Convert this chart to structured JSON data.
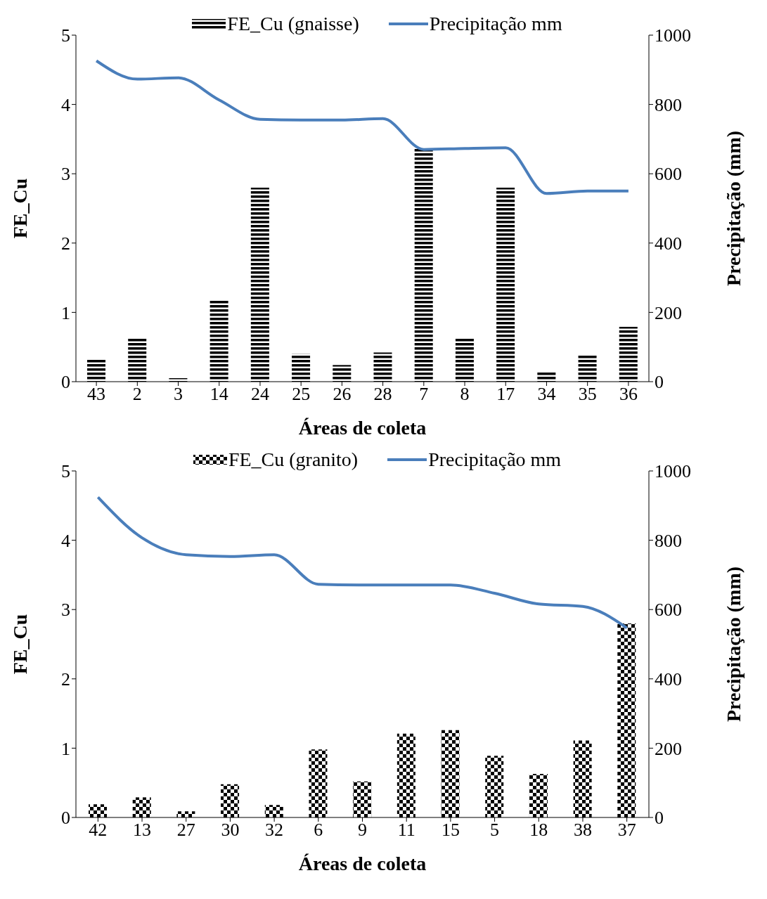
{
  "chart_data": [
    {
      "type": "bar",
      "xlabel": "Áreas de coleta",
      "ylabel": "FE_Cu",
      "y2label": "Precipitação (mm)",
      "categories": [
        "43",
        "2",
        "3",
        "14",
        "24",
        "25",
        "26",
        "28",
        "7",
        "8",
        "17",
        "34",
        "35",
        "36"
      ],
      "series": [
        {
          "name": "FE_Cu (gnaisse)",
          "color": "#000000",
          "values": [
            0.33,
            0.62,
            0.05,
            1.17,
            2.8,
            0.4,
            0.24,
            0.42,
            3.36,
            0.63,
            2.8,
            0.14,
            0.39,
            0.79
          ]
        },
        {
          "name": "Precipitação mm",
          "type": "line",
          "axis": "y2",
          "color": "#4a7ebb",
          "values": [
            926,
            873,
            877,
            813,
            757,
            755,
            755,
            759,
            670,
            673,
            675,
            543,
            550,
            550
          ]
        }
      ],
      "ylim": [
        0,
        5
      ],
      "yticks": [
        0,
        1,
        2,
        3,
        4,
        5
      ],
      "y2lim": [
        0,
        1000
      ],
      "y2ticks": [
        0,
        200,
        400,
        600,
        800,
        1000
      ],
      "legend": "top",
      "marker": "none"
    },
    {
      "type": "bar",
      "xlabel": "Áreas de coleta",
      "ylabel": "FE_Cu",
      "y2label": "Precipitação (mm)",
      "categories": [
        "42",
        "13",
        "27",
        "30",
        "32",
        "6",
        "9",
        "11",
        "15",
        "5",
        "18",
        "38",
        "37"
      ],
      "series": [
        {
          "name": "FE_Cu (granito)",
          "color": "#000000",
          "values": [
            0.19,
            0.29,
            0.09,
            0.48,
            0.18,
            0.98,
            0.52,
            1.21,
            1.26,
            0.89,
            0.63,
            1.11,
            2.8
          ]
        },
        {
          "name": "Precipitação mm",
          "type": "line",
          "axis": "y2",
          "color": "#4a7ebb",
          "values": [
            924,
            807,
            758,
            753,
            758,
            673,
            671,
            671,
            671,
            647,
            616,
            609,
            547
          ]
        }
      ],
      "ylim": [
        0,
        5
      ],
      "yticks": [
        0,
        1,
        2,
        3,
        4,
        5
      ],
      "y2lim": [
        0,
        1000
      ],
      "y2ticks": [
        0,
        200,
        400,
        600,
        800,
        1000
      ],
      "legend": "top",
      "marker": "none"
    }
  ]
}
